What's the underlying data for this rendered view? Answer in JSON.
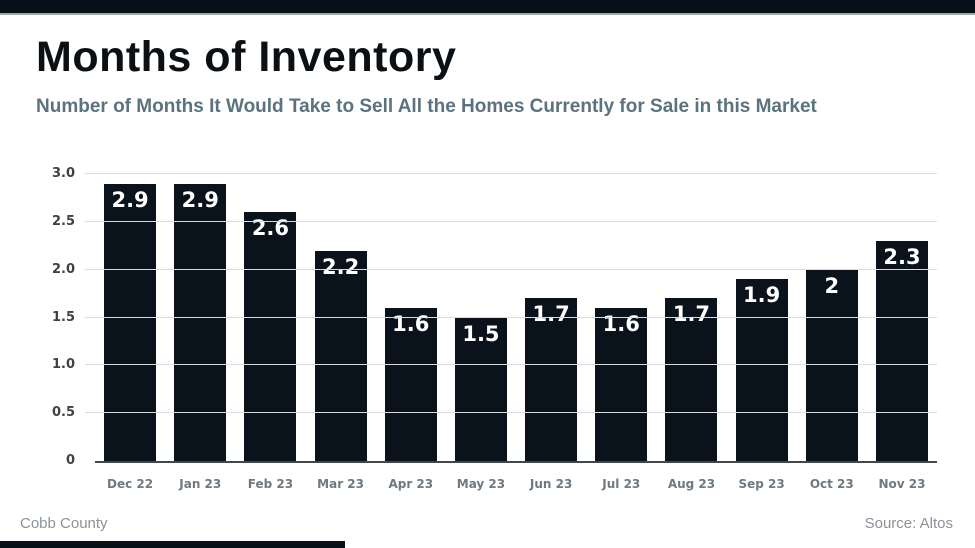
{
  "header": {
    "title": "Months of Inventory",
    "subtitle": "Number of Months It Would Take to Sell All the Homes Currently for Sale in this Market"
  },
  "footer": {
    "left": "Cobb County",
    "right": "Source: Altos"
  },
  "colors": {
    "dark": "#081119",
    "bar": "#0a131c",
    "subtitle": "#5b7280",
    "grid": "#d9dcde",
    "axis": "#40474d",
    "y_label": "#3c4247",
    "x_label": "#6e7980",
    "value_label": "#ffffff",
    "footer_text": "#8b9299"
  },
  "chart_data": {
    "type": "bar",
    "title": "Months of Inventory",
    "subtitle": "Number of Months It Would Take to Sell All the Homes Currently for Sale in this Market",
    "categories": [
      "Dec 22",
      "Jan 23",
      "Feb 23",
      "Mar 23",
      "Apr 23",
      "May 23",
      "Jun 23",
      "Jul 23",
      "Aug 23",
      "Sep 23",
      "Oct 23",
      "Nov 23"
    ],
    "values": [
      2.9,
      2.9,
      2.6,
      2.2,
      1.6,
      1.5,
      1.7,
      1.6,
      1.7,
      1.9,
      2,
      2.3
    ],
    "value_labels": [
      "2.9",
      "2.9",
      "2.6",
      "2.2",
      "1.6",
      "1.5",
      "1.7",
      "1.6",
      "1.7",
      "1.9",
      "2",
      "2.3"
    ],
    "xlabel": "",
    "ylabel": "",
    "ylim": [
      0,
      3.0
    ],
    "yticks": [
      0,
      0.5,
      1.0,
      1.5,
      2.0,
      2.5,
      3.0
    ],
    "ytick_labels": [
      "0",
      "0.5",
      "1.0",
      "1.5",
      "2.0",
      "2.5",
      "3.0"
    ],
    "grid": true,
    "legend": false,
    "bar_color": "#0a131c",
    "value_label_position": "inside-top"
  }
}
